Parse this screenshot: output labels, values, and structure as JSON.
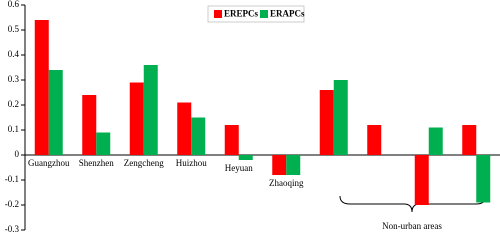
{
  "chart_data": {
    "type": "bar",
    "categories": [
      "Guangzhou",
      "Shenzhen",
      "Zengcheng",
      "Huizhou",
      "Heyuan",
      "Zhaoqing",
      null,
      null,
      null,
      null
    ],
    "series": [
      {
        "name": "EREPCs",
        "color": "#ff0000",
        "values": [
          0.54,
          0.24,
          0.29,
          0.21,
          0.12,
          -0.08,
          0.26,
          0.12,
          -0.2,
          0.12
        ]
      },
      {
        "name": "ERAPCs",
        "color": "#00b050",
        "values": [
          0.34,
          0.09,
          0.36,
          0.15,
          -0.02,
          -0.08,
          0.3,
          null,
          0.11,
          -0.19
        ]
      }
    ],
    "ylim": [
      -0.3,
      0.6
    ],
    "yticks": [
      -0.3,
      -0.2,
      -0.1,
      0,
      0.1,
      0.2,
      0.3,
      0.4,
      0.5,
      0.6
    ],
    "annotation": "Non-urban areas",
    "legend": "top"
  }
}
